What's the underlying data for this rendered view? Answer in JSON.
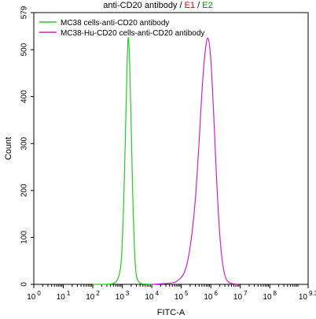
{
  "chart_data": {
    "type": "line",
    "title": {
      "text": "anti-CD20 antibody",
      "sep1": " / ",
      "e1": "E1",
      "sep2": " / ",
      "e2": "E2",
      "e1_color": "#e00000",
      "e2_color": "#008a00"
    },
    "xlabel": "FITC-A",
    "ylabel": "Count",
    "x_scale": "log10",
    "xlim": [
      1,
      1995262315
    ],
    "ylim": [
      0,
      579
    ],
    "x_ticks": [
      {
        "base": "10",
        "exp": "0"
      },
      {
        "base": "10",
        "exp": "1"
      },
      {
        "base": "10",
        "exp": "2"
      },
      {
        "base": "10",
        "exp": "3"
      },
      {
        "base": "10",
        "exp": "4"
      },
      {
        "base": "10",
        "exp": "5"
      },
      {
        "base": "10",
        "exp": "6"
      },
      {
        "base": "10",
        "exp": "7"
      },
      {
        "base": "10",
        "exp": "8"
      },
      {
        "base": "10",
        "exp": "9.3"
      }
    ],
    "y_ticks": [
      "0",
      "100",
      "200",
      "300",
      "400",
      "500",
      "579"
    ],
    "legend_position": "top-left",
    "series": [
      {
        "name": "MC38 cells-anti-CD20 antibody",
        "color": "#22cc22",
        "x": [
          100,
          251,
          501,
          708,
          891,
          1000,
          1122,
          1259,
          1413,
          1585,
          1778,
          1995,
          2239,
          2512,
          2818,
          3162,
          3981,
          5012,
          10000
        ],
        "y": [
          0,
          0,
          2,
          12,
          40,
          90,
          180,
          300,
          440,
          525,
          470,
          340,
          200,
          95,
          35,
          12,
          3,
          1,
          0
        ]
      },
      {
        "name": "MC38-Hu-CD20 cells-anti-CD20 antibody",
        "color": "#cc22cc",
        "x": [
          10000,
          31623,
          63096,
          100000,
          125893,
          158489,
          199526,
          251189,
          316228,
          398107,
          501187,
          630957,
          794328,
          1000000,
          1258925,
          1584893,
          1995262,
          2511886,
          3162278,
          3981072,
          5011872,
          7943282
        ],
        "y": [
          0,
          2,
          5,
          15,
          25,
          45,
          80,
          130,
          200,
          300,
          410,
          490,
          525,
          480,
          360,
          220,
          110,
          45,
          15,
          5,
          2,
          0
        ]
      }
    ]
  }
}
